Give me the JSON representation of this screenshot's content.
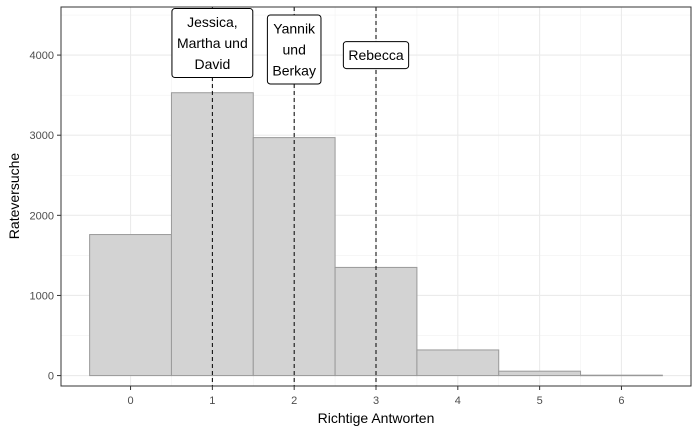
{
  "chart_data": {
    "type": "bar",
    "x": [
      0,
      1,
      2,
      3,
      4,
      5,
      6
    ],
    "values": [
      1760,
      3530,
      2970,
      1350,
      320,
      55,
      5
    ],
    "xlabel": "Richtige Antworten",
    "ylabel": "Rateversuche",
    "xlim": [
      -0.85,
      6.85
    ],
    "ylim": [
      -130,
      4600
    ],
    "x_ticks": [
      "0",
      "1",
      "2",
      "3",
      "4",
      "5",
      "6"
    ],
    "y_ticks": [
      "0",
      "1000",
      "2000",
      "3000",
      "4000"
    ],
    "grid": true,
    "bar_fill": "#d3d3d3",
    "bar_stroke": "#999999",
    "annotations": [
      {
        "x": 1,
        "label_lines": [
          "Jessica,",
          "Martha und",
          "David"
        ],
        "label_y": 4150
      },
      {
        "x": 2,
        "label_lines": [
          "Yannik",
          "und",
          "Berkay"
        ],
        "label_y": 4070
      },
      {
        "x": 3,
        "label_lines": [
          "Rebecca"
        ],
        "label_y": 4000
      }
    ]
  }
}
